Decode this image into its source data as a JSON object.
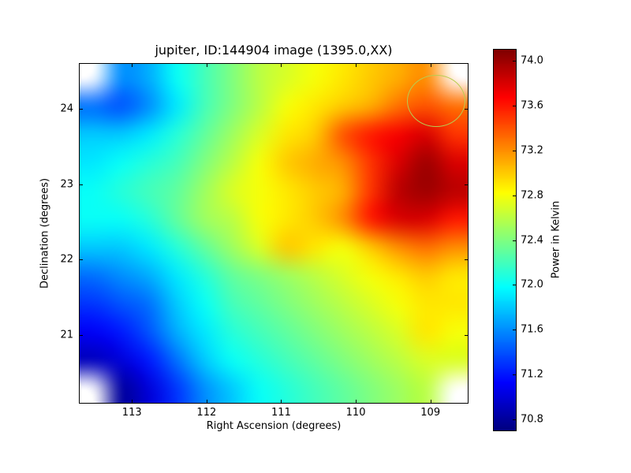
{
  "chart_data": {
    "type": "heatmap",
    "title": "jupiter, ID:144904 image (1395.0,XX)",
    "xlabel": "Right Ascension (degrees)",
    "ylabel": "Declination (degrees)",
    "colorbar_label": "Power in Kelvin",
    "colormap": "jet",
    "x_ticks": [
      113,
      112,
      111,
      110,
      109
    ],
    "y_ticks": [
      21,
      22,
      23,
      24
    ],
    "colorbar_ticks": [
      70.8,
      71.2,
      71.6,
      72.0,
      72.4,
      72.8,
      73.2,
      73.6,
      74.0
    ],
    "x_range": [
      113.7,
      108.5
    ],
    "x_axis_reversed": true,
    "y_range": [
      20.1,
      24.6
    ],
    "value_range": [
      70.7,
      74.1
    ],
    "annotation_circle": {
      "cx_frac": 0.919,
      "cy_frac": 0.109,
      "rx_frac": 0.075,
      "ry_frac": 0.077,
      "color": "#b8cc50"
    },
    "grid": {
      "rows": 12,
      "cols": 14,
      "values": [
        [
          null,
          71.6,
          71.7,
          72.0,
          72.2,
          72.4,
          72.6,
          72.7,
          72.8,
          72.9,
          73.0,
          73.1,
          73.2,
          null
        ],
        [
          71.5,
          71.4,
          71.6,
          71.9,
          72.2,
          72.4,
          72.6,
          72.8,
          72.9,
          73.0,
          73.1,
          73.3,
          73.4,
          73.3
        ],
        [
          71.8,
          71.8,
          71.9,
          72.1,
          72.3,
          72.5,
          72.7,
          72.9,
          73.0,
          73.4,
          73.6,
          73.7,
          73.8,
          73.5
        ],
        [
          71.9,
          72.0,
          72.1,
          72.2,
          72.4,
          72.6,
          72.8,
          73.0,
          73.1,
          73.2,
          73.5,
          73.8,
          74.0,
          73.8
        ],
        [
          72.0,
          72.1,
          72.2,
          72.3,
          72.5,
          72.7,
          72.8,
          72.9,
          73.0,
          73.1,
          73.5,
          73.9,
          74.0,
          73.9
        ],
        [
          72.0,
          72.0,
          72.1,
          72.3,
          72.5,
          72.6,
          72.8,
          72.9,
          73.0,
          73.2,
          73.6,
          73.8,
          73.8,
          73.6
        ],
        [
          71.8,
          71.8,
          71.9,
          72.1,
          72.3,
          72.5,
          72.7,
          73.0,
          72.9,
          72.8,
          73.0,
          73.2,
          73.3,
          73.2
        ],
        [
          71.5,
          71.6,
          71.7,
          71.9,
          72.1,
          72.3,
          72.4,
          72.5,
          72.6,
          72.7,
          72.8,
          72.9,
          73.0,
          72.9
        ],
        [
          71.3,
          71.4,
          71.5,
          71.8,
          72.0,
          72.2,
          72.3,
          72.4,
          72.5,
          72.6,
          72.7,
          72.8,
          72.9,
          72.9
        ],
        [
          71.1,
          71.2,
          71.4,
          71.7,
          71.9,
          72.1,
          72.2,
          72.3,
          72.4,
          72.5,
          72.6,
          72.7,
          72.9,
          72.8
        ],
        [
          70.9,
          71.0,
          71.2,
          71.5,
          71.8,
          72.0,
          72.1,
          72.2,
          72.3,
          72.4,
          72.5,
          72.6,
          72.7,
          72.7
        ],
        [
          null,
          70.8,
          71.0,
          71.3,
          71.6,
          71.8,
          72.0,
          72.1,
          72.2,
          72.3,
          72.4,
          72.5,
          72.6,
          null
        ]
      ]
    }
  }
}
